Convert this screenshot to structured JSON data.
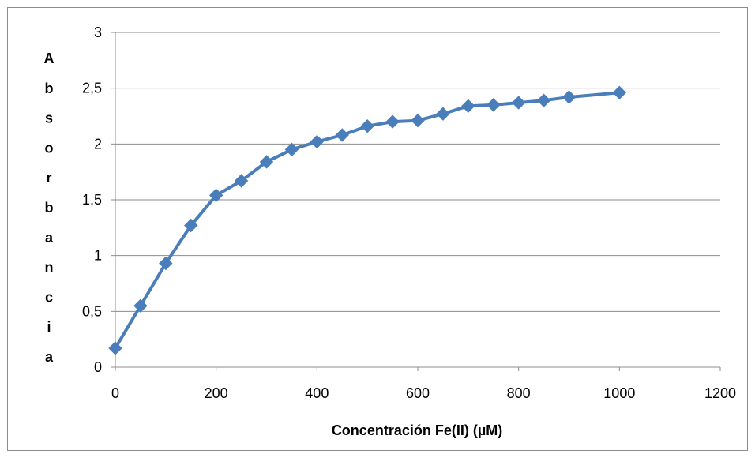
{
  "chart_data": {
    "type": "line",
    "title": "",
    "xlabel": "Concentración Fe(II) (µM)",
    "ylabel": "Absorbancia",
    "xlim": [
      0,
      1200
    ],
    "ylim": [
      0,
      3
    ],
    "x_ticks": [
      0,
      200,
      400,
      600,
      800,
      1000,
      1200
    ],
    "y_ticks": [
      0,
      0.5,
      1,
      1.5,
      2,
      2.5,
      3
    ],
    "x_tick_labels": [
      "0",
      "200",
      "400",
      "600",
      "800",
      "1000",
      "1200"
    ],
    "y_tick_labels": [
      "0",
      "0,5",
      "1",
      "1,5",
      "2",
      "2,5",
      "3"
    ],
    "grid": "horizontal",
    "legend": "none",
    "series": [
      {
        "color": "#4a7ebb",
        "marker": "diamond",
        "x": [
          0,
          50,
          100,
          150,
          200,
          250,
          300,
          350,
          400,
          450,
          500,
          550,
          600,
          650,
          700,
          750,
          800,
          850,
          900,
          1000
        ],
        "y": [
          0.17,
          0.55,
          0.93,
          1.27,
          1.54,
          1.67,
          1.84,
          1.95,
          2.02,
          2.08,
          2.16,
          2.2,
          2.21,
          2.27,
          2.34,
          2.35,
          2.37,
          2.39,
          2.42,
          2.46
        ]
      }
    ]
  }
}
